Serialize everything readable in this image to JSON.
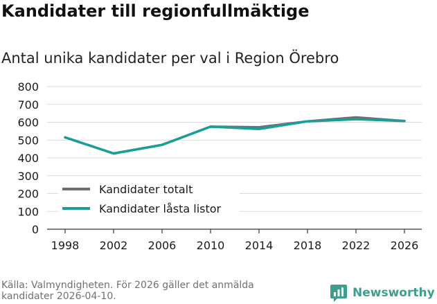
{
  "title": "Kandidater till regionfullmäktige",
  "subtitle": "Antal unika kandidater per val i Region Örebro",
  "source": "Källa: Valmyndigheten. För 2026 gäller det anmälda kandidater 2026-04-10.",
  "brand": {
    "name": "Newsworthy",
    "icon": "newsworthy-logo-icon"
  },
  "colors": {
    "grid": "#d9d9d9",
    "axis": "#333333",
    "accent": "#3c9e8c"
  },
  "chart_data": {
    "type": "line",
    "title": "Kandidater till regionfullmäktige",
    "subtitle": "Antal unika kandidater per val i Region Örebro",
    "xlabel": "",
    "ylabel": "",
    "categories": [
      "1998",
      "2002",
      "2006",
      "2010",
      "2014",
      "2018",
      "2022",
      "2026"
    ],
    "y_ticks": [
      0,
      100,
      200,
      300,
      400,
      500,
      600,
      700,
      800
    ],
    "ylim": [
      0,
      800
    ],
    "grid": true,
    "legend": "lower-left",
    "series": [
      {
        "name": "Kandidater totalt",
        "color": "#6e6e72",
        "values": [
          515,
          425,
          473,
          575,
          572,
          605,
          627,
          607
        ]
      },
      {
        "name": "Kandidater låsta listor",
        "color": "#16a099",
        "values": [
          515,
          425,
          473,
          575,
          562,
          605,
          617,
          607
        ]
      }
    ]
  }
}
